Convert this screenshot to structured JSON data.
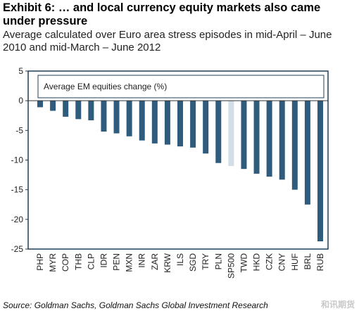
{
  "header": {
    "title": "Exhibit 6: … and local currency equity markets also came under pressure",
    "subtitle": "Average calculated over Euro area stress episodes in mid-April – June 2010 and mid-March – June 2012"
  },
  "footer": {
    "source": "Source: Goldman Sachs, Goldman Sachs Global Investment Research",
    "watermark": "和讯期货"
  },
  "colors": {
    "bar": "#2f5c7d",
    "highlight_bar": "#d2dde6",
    "frame": "#1f3f5a",
    "axis": "#333333"
  },
  "chart_data": {
    "type": "bar",
    "legend_label": "Average EM equities change (%)",
    "legend_placement": "top-left",
    "categories": [
      "PHP",
      "MYR",
      "COP",
      "THB",
      "CLP",
      "IDR",
      "PEN",
      "MXN",
      "INR",
      "ZAR",
      "KRW",
      "ILS",
      "SGD",
      "TRY",
      "PLN",
      "SP500",
      "TWD",
      "HKD",
      "CZK",
      "CNY",
      "HUF",
      "BRL",
      "RUB"
    ],
    "values": [
      -1.1,
      -1.7,
      -2.7,
      -3.1,
      -3.3,
      -5.2,
      -5.5,
      -6.0,
      -6.7,
      -7.2,
      -7.4,
      -7.7,
      -7.9,
      -8.9,
      -10.5,
      -11.0,
      -11.5,
      -12.3,
      -12.8,
      -13.3,
      -15.0,
      -17.5,
      -23.7
    ],
    "highlight": [
      "SP500"
    ],
    "ylim": [
      -25,
      5
    ],
    "yticks": [
      5,
      0,
      -5,
      -10,
      -15,
      -20,
      -25
    ],
    "grid": false
  }
}
